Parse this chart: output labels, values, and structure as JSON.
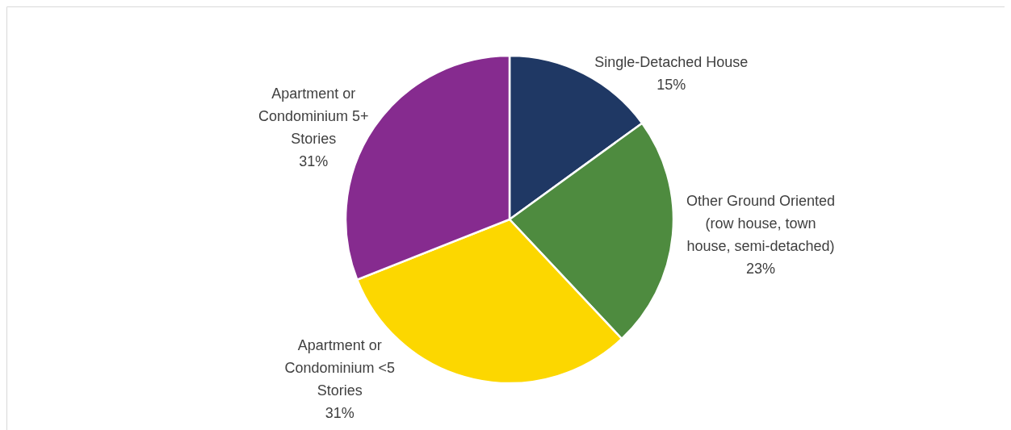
{
  "chart_data": {
    "type": "pie",
    "categories": [
      "Single-Detached House",
      "Other Ground Oriented (row house, town house, semi-detached)",
      "Apartment or Condominium <5 Stories",
      "Apartment or Condominium 5+ Stories"
    ],
    "values": [
      15,
      23,
      31,
      31
    ],
    "value_labels": [
      "15%",
      "23%",
      "31%",
      "31%"
    ],
    "colors": [
      "#1f3864",
      "#4e8b3f",
      "#fcd700",
      "#862b8f"
    ]
  }
}
